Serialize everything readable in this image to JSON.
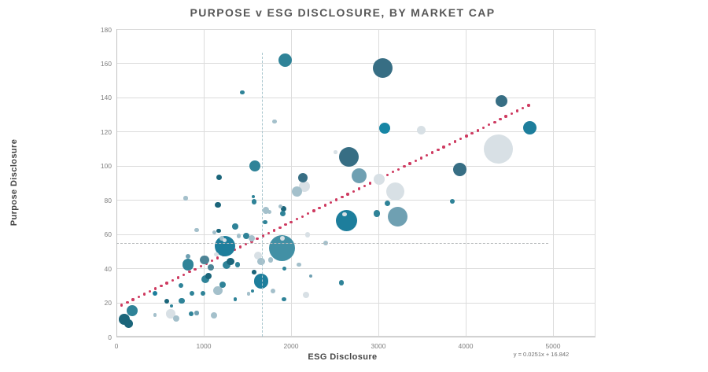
{
  "title": "PURPOSE v ESG DISCLOSURE, BY MARKET CAP",
  "x_axis_title": "ESG Disclosure",
  "y_axis_title": "Purpose Disclosure",
  "equation_label": "y = 0.0251x + 16.842",
  "chart_data": {
    "type": "bubble",
    "title": "PURPOSE v ESG DISCLOSURE, BY MARKET CAP",
    "xlabel": "ESG Disclosure",
    "ylabel": "Purpose Disclosure",
    "xlim": [
      0,
      5000
    ],
    "ylim": [
      0,
      180
    ],
    "x_ticks": [
      0,
      1000,
      2000,
      3000,
      4000,
      5000
    ],
    "y_ticks": [
      0,
      20,
      40,
      60,
      80,
      100,
      120,
      140,
      160,
      180
    ],
    "grid": true,
    "legend": "none",
    "size_encoding": "market cap",
    "trendline": {
      "equation": "y = 0.0251x + 16.842",
      "slope": 0.0251,
      "intercept": 16.842,
      "x_start": 60,
      "x_end": 4720,
      "style": "dotted",
      "color": "#ce3a60"
    },
    "reference_lines": {
      "vertical": {
        "x": 1665,
        "y_from": 0,
        "y_to": 166
      },
      "horizontal": {
        "y": 55,
        "x_from": 0,
        "x_to": 4950
      }
    },
    "palette": {
      "dark": "#1b657a",
      "teal": "#1d7e9c",
      "medium": "#2f8398",
      "deep": "#376e84",
      "steel": "#6fa0b2",
      "mist": "#a4c0cb",
      "pale": "#d8e0e5",
      "muted": "#4d8496",
      "big": "#4290a5",
      "bright": "#1786a5"
    },
    "point_format": [
      "esg_disclosure",
      "purpose_disclosure",
      "radius_px",
      "color_key"
    ],
    "points": [
      [
        1928,
        162,
        8.5,
        "medium"
      ],
      [
        3054,
        157,
        12.5,
        "deep"
      ],
      [
        1441,
        143,
        2.8,
        "medium"
      ],
      [
        4414,
        138,
        7.5,
        "deep"
      ],
      [
        1811,
        126,
        2.8,
        "mist"
      ],
      [
        3072,
        122,
        7,
        "bright"
      ],
      [
        4730,
        122,
        8.5,
        "teal"
      ],
      [
        3495,
        121,
        5.5,
        "pale"
      ],
      [
        4378,
        110,
        18.5,
        "pale"
      ],
      [
        2510,
        108,
        2.2,
        "pale"
      ],
      [
        2666,
        105,
        12.5,
        "deep"
      ],
      [
        1586,
        100,
        7,
        "medium"
      ],
      [
        3928,
        98,
        8.5,
        "deep"
      ],
      [
        2775,
        94,
        9.5,
        "steel"
      ],
      [
        1180,
        93,
        3.5,
        "dark"
      ],
      [
        2135,
        93,
        6,
        "deep"
      ],
      [
        3009,
        92,
        7,
        "pale"
      ],
      [
        2153,
        88,
        7,
        "pale"
      ],
      [
        2072,
        85,
        6.5,
        "mist"
      ],
      [
        3198,
        85,
        11.5,
        "pale"
      ],
      [
        793,
        81,
        2.6,
        "mist"
      ],
      [
        1568,
        82,
        2.2,
        "medium"
      ],
      [
        3847,
        79,
        3,
        "medium"
      ],
      [
        1577,
        79,
        3.4,
        "medium"
      ],
      [
        3108,
        78,
        3.5,
        "medium"
      ],
      [
        1162,
        77,
        3.7,
        "dark"
      ],
      [
        1874,
        76,
        2.5,
        "mist"
      ],
      [
        1910,
        75,
        3.5,
        "dark"
      ],
      [
        1712,
        74,
        4.4,
        "mist"
      ],
      [
        1748,
        73,
        2.5,
        "mist"
      ],
      [
        1901,
        72,
        3.5,
        "medium"
      ],
      [
        2982,
        72,
        4.4,
        "medium"
      ],
      [
        2613,
        71.5,
        2.8,
        "pale"
      ],
      [
        3225,
        70,
        12.5,
        "steel"
      ],
      [
        2631,
        68,
        13.5,
        "teal"
      ],
      [
        1703,
        67,
        2.7,
        "medium"
      ],
      [
        1360,
        64.5,
        3.7,
        "medium"
      ],
      [
        919,
        62.5,
        2.7,
        "mist"
      ],
      [
        1171,
        62,
        2.7,
        "dark"
      ],
      [
        1120,
        61,
        2.4,
        "mist"
      ],
      [
        2189,
        59.5,
        3.3,
        "pale"
      ],
      [
        1490,
        59,
        4,
        "medium"
      ],
      [
        1400,
        59,
        2.7,
        "mist"
      ],
      [
        1550,
        57.5,
        4,
        "mist"
      ],
      [
        2400,
        55,
        3,
        "mist"
      ],
      [
        1897,
        57.5,
        3,
        "pale"
      ],
      [
        1900,
        52,
        16.5,
        "big"
      ],
      [
        1243,
        53,
        13,
        "teal"
      ],
      [
        1240,
        56.5,
        2.4,
        "pale"
      ],
      [
        1207,
        57.5,
        3,
        "mist"
      ],
      [
        1620,
        47.5,
        5,
        "pale"
      ],
      [
        1658,
        44,
        4.6,
        "mist"
      ],
      [
        1766,
        45,
        3.3,
        "mist"
      ],
      [
        1009,
        45,
        5.7,
        "muted"
      ],
      [
        820,
        47,
        3.3,
        "steel"
      ],
      [
        1306,
        44,
        4.7,
        "dark"
      ],
      [
        1261,
        42,
        5,
        "medium"
      ],
      [
        1387,
        42,
        3.3,
        "medium"
      ],
      [
        820,
        42,
        7.3,
        "medium"
      ],
      [
        2090,
        42,
        2.7,
        "mist"
      ],
      [
        1925,
        40,
        2.5,
        "medium"
      ],
      [
        1144,
        48,
        2.7,
        "pale"
      ],
      [
        1081,
        40.5,
        4,
        "muted"
      ],
      [
        1054,
        35.5,
        4,
        "dark"
      ],
      [
        2225,
        35.5,
        2.2,
        "steel"
      ],
      [
        1658,
        32.5,
        9.3,
        "teal"
      ],
      [
        1577,
        37.7,
        2.8,
        "dark"
      ],
      [
        1018,
        33.5,
        5,
        "medium"
      ],
      [
        2577,
        31.5,
        3.3,
        "medium"
      ],
      [
        1216,
        30.5,
        4,
        "medium"
      ],
      [
        739,
        30,
        3.3,
        "medium"
      ],
      [
        1162,
        27,
        5.7,
        "mist"
      ],
      [
        1559,
        26.7,
        2.4,
        "medium"
      ],
      [
        1793,
        26.7,
        3.3,
        "mist"
      ],
      [
        441,
        25.3,
        3.4,
        "teal"
      ],
      [
        865,
        25.3,
        3,
        "medium"
      ],
      [
        991,
        25.3,
        3.3,
        "medium"
      ],
      [
        1514,
        25,
        2.3,
        "mist"
      ],
      [
        2171,
        24.5,
        4,
        "pale"
      ],
      [
        1360,
        22,
        2.4,
        "medium"
      ],
      [
        748,
        21,
        3.7,
        "medium"
      ],
      [
        1919,
        22,
        2.7,
        "medium"
      ],
      [
        577,
        20.7,
        3,
        "dark"
      ],
      [
        180,
        15.4,
        7,
        "medium"
      ],
      [
        441,
        12.7,
        2.4,
        "mist"
      ],
      [
        631,
        18,
        2.4,
        "medium"
      ],
      [
        622,
        13.3,
        5.7,
        "pale"
      ],
      [
        685,
        10.6,
        4,
        "mist"
      ],
      [
        856,
        13.4,
        3.3,
        "medium"
      ],
      [
        919,
        13.8,
        2.7,
        "steel"
      ],
      [
        1117,
        12.6,
        4,
        "mist"
      ],
      [
        90,
        10,
        6.8,
        "dark"
      ],
      [
        140,
        7.5,
        5.4,
        "dark"
      ]
    ]
  }
}
